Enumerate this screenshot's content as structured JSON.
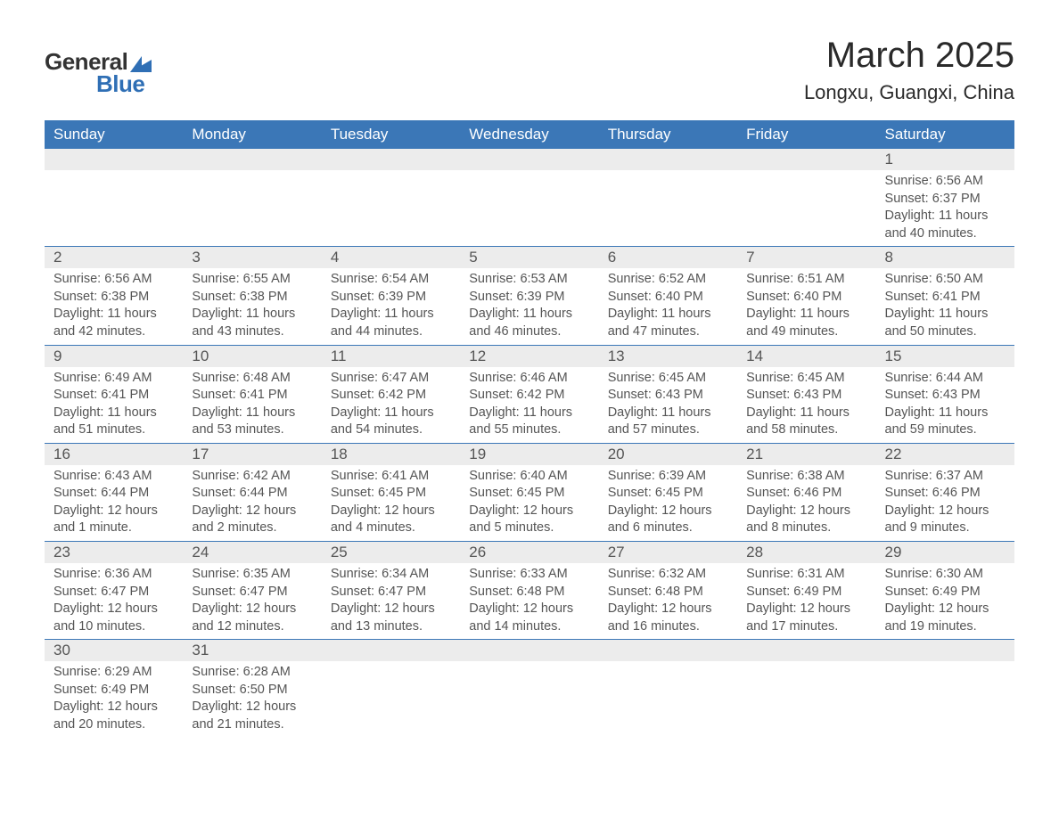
{
  "brand": {
    "top": "General",
    "bottom": "Blue"
  },
  "title": "March 2025",
  "location": "Longxu, Guangxi, China",
  "colors": {
    "header_bg": "#3b77b7",
    "header_text": "#ffffff",
    "daynum_bg": "#ececec",
    "text": "#555555",
    "border": "#3b77b7",
    "logo_blue": "#2f6fb5",
    "page_bg": "#ffffff"
  },
  "dayHeaders": [
    "Sunday",
    "Monday",
    "Tuesday",
    "Wednesday",
    "Thursday",
    "Friday",
    "Saturday"
  ],
  "weeks": [
    [
      null,
      null,
      null,
      null,
      null,
      null,
      {
        "n": "1",
        "sr": "6:56 AM",
        "ss": "6:37 PM",
        "dl": "11 hours and 40 minutes."
      }
    ],
    [
      {
        "n": "2",
        "sr": "6:56 AM",
        "ss": "6:38 PM",
        "dl": "11 hours and 42 minutes."
      },
      {
        "n": "3",
        "sr": "6:55 AM",
        "ss": "6:38 PM",
        "dl": "11 hours and 43 minutes."
      },
      {
        "n": "4",
        "sr": "6:54 AM",
        "ss": "6:39 PM",
        "dl": "11 hours and 44 minutes."
      },
      {
        "n": "5",
        "sr": "6:53 AM",
        "ss": "6:39 PM",
        "dl": "11 hours and 46 minutes."
      },
      {
        "n": "6",
        "sr": "6:52 AM",
        "ss": "6:40 PM",
        "dl": "11 hours and 47 minutes."
      },
      {
        "n": "7",
        "sr": "6:51 AM",
        "ss": "6:40 PM",
        "dl": "11 hours and 49 minutes."
      },
      {
        "n": "8",
        "sr": "6:50 AM",
        "ss": "6:41 PM",
        "dl": "11 hours and 50 minutes."
      }
    ],
    [
      {
        "n": "9",
        "sr": "6:49 AM",
        "ss": "6:41 PM",
        "dl": "11 hours and 51 minutes."
      },
      {
        "n": "10",
        "sr": "6:48 AM",
        "ss": "6:41 PM",
        "dl": "11 hours and 53 minutes."
      },
      {
        "n": "11",
        "sr": "6:47 AM",
        "ss": "6:42 PM",
        "dl": "11 hours and 54 minutes."
      },
      {
        "n": "12",
        "sr": "6:46 AM",
        "ss": "6:42 PM",
        "dl": "11 hours and 55 minutes."
      },
      {
        "n": "13",
        "sr": "6:45 AM",
        "ss": "6:43 PM",
        "dl": "11 hours and 57 minutes."
      },
      {
        "n": "14",
        "sr": "6:45 AM",
        "ss": "6:43 PM",
        "dl": "11 hours and 58 minutes."
      },
      {
        "n": "15",
        "sr": "6:44 AM",
        "ss": "6:43 PM",
        "dl": "11 hours and 59 minutes."
      }
    ],
    [
      {
        "n": "16",
        "sr": "6:43 AM",
        "ss": "6:44 PM",
        "dl": "12 hours and 1 minute."
      },
      {
        "n": "17",
        "sr": "6:42 AM",
        "ss": "6:44 PM",
        "dl": "12 hours and 2 minutes."
      },
      {
        "n": "18",
        "sr": "6:41 AM",
        "ss": "6:45 PM",
        "dl": "12 hours and 4 minutes."
      },
      {
        "n": "19",
        "sr": "6:40 AM",
        "ss": "6:45 PM",
        "dl": "12 hours and 5 minutes."
      },
      {
        "n": "20",
        "sr": "6:39 AM",
        "ss": "6:45 PM",
        "dl": "12 hours and 6 minutes."
      },
      {
        "n": "21",
        "sr": "6:38 AM",
        "ss": "6:46 PM",
        "dl": "12 hours and 8 minutes."
      },
      {
        "n": "22",
        "sr": "6:37 AM",
        "ss": "6:46 PM",
        "dl": "12 hours and 9 minutes."
      }
    ],
    [
      {
        "n": "23",
        "sr": "6:36 AM",
        "ss": "6:47 PM",
        "dl": "12 hours and 10 minutes."
      },
      {
        "n": "24",
        "sr": "6:35 AM",
        "ss": "6:47 PM",
        "dl": "12 hours and 12 minutes."
      },
      {
        "n": "25",
        "sr": "6:34 AM",
        "ss": "6:47 PM",
        "dl": "12 hours and 13 minutes."
      },
      {
        "n": "26",
        "sr": "6:33 AM",
        "ss": "6:48 PM",
        "dl": "12 hours and 14 minutes."
      },
      {
        "n": "27",
        "sr": "6:32 AM",
        "ss": "6:48 PM",
        "dl": "12 hours and 16 minutes."
      },
      {
        "n": "28",
        "sr": "6:31 AM",
        "ss": "6:49 PM",
        "dl": "12 hours and 17 minutes."
      },
      {
        "n": "29",
        "sr": "6:30 AM",
        "ss": "6:49 PM",
        "dl": "12 hours and 19 minutes."
      }
    ],
    [
      {
        "n": "30",
        "sr": "6:29 AM",
        "ss": "6:49 PM",
        "dl": "12 hours and 20 minutes."
      },
      {
        "n": "31",
        "sr": "6:28 AM",
        "ss": "6:50 PM",
        "dl": "12 hours and 21 minutes."
      },
      null,
      null,
      null,
      null,
      null
    ]
  ],
  "labels": {
    "sunrise": "Sunrise: ",
    "sunset": "Sunset: ",
    "daylight": "Daylight: "
  }
}
